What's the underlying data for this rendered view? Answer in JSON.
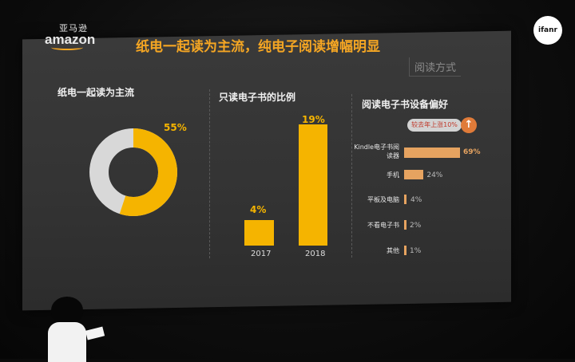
{
  "slide": {
    "logo_cn": "亚马逊",
    "logo_en": "amazon",
    "headline": "纸电一起读为主流，纯电子阅读增幅明显",
    "tag": "阅读方式"
  },
  "donut": {
    "title": "纸电一起读为主流",
    "value_label": "55%",
    "value": 55,
    "colors": {
      "primary": "#f5b400",
      "rest": "#d8d8d8"
    }
  },
  "bars": {
    "title": "只读电子书的比例",
    "items": [
      {
        "year": "2017",
        "label": "4%",
        "value": 4
      },
      {
        "year": "2018",
        "label": "19%",
        "value": 19
      }
    ]
  },
  "devices": {
    "title": "阅读电子书设备偏好",
    "badge": "较去年上涨10%",
    "badge_icon": "arrow-up-icon",
    "items": [
      {
        "label": "Kindle电子书阅读器",
        "value_label": "69%",
        "value": 69
      },
      {
        "label": "手机",
        "value_label": "24%",
        "value": 24
      },
      {
        "label": "平板及电脑",
        "value_label": "4%",
        "value": 4
      },
      {
        "label": "不看电子书",
        "value_label": "2%",
        "value": 2
      },
      {
        "label": "其他",
        "value_label": "1%",
        "value": 1
      }
    ]
  },
  "watermark": "ifanr"
}
